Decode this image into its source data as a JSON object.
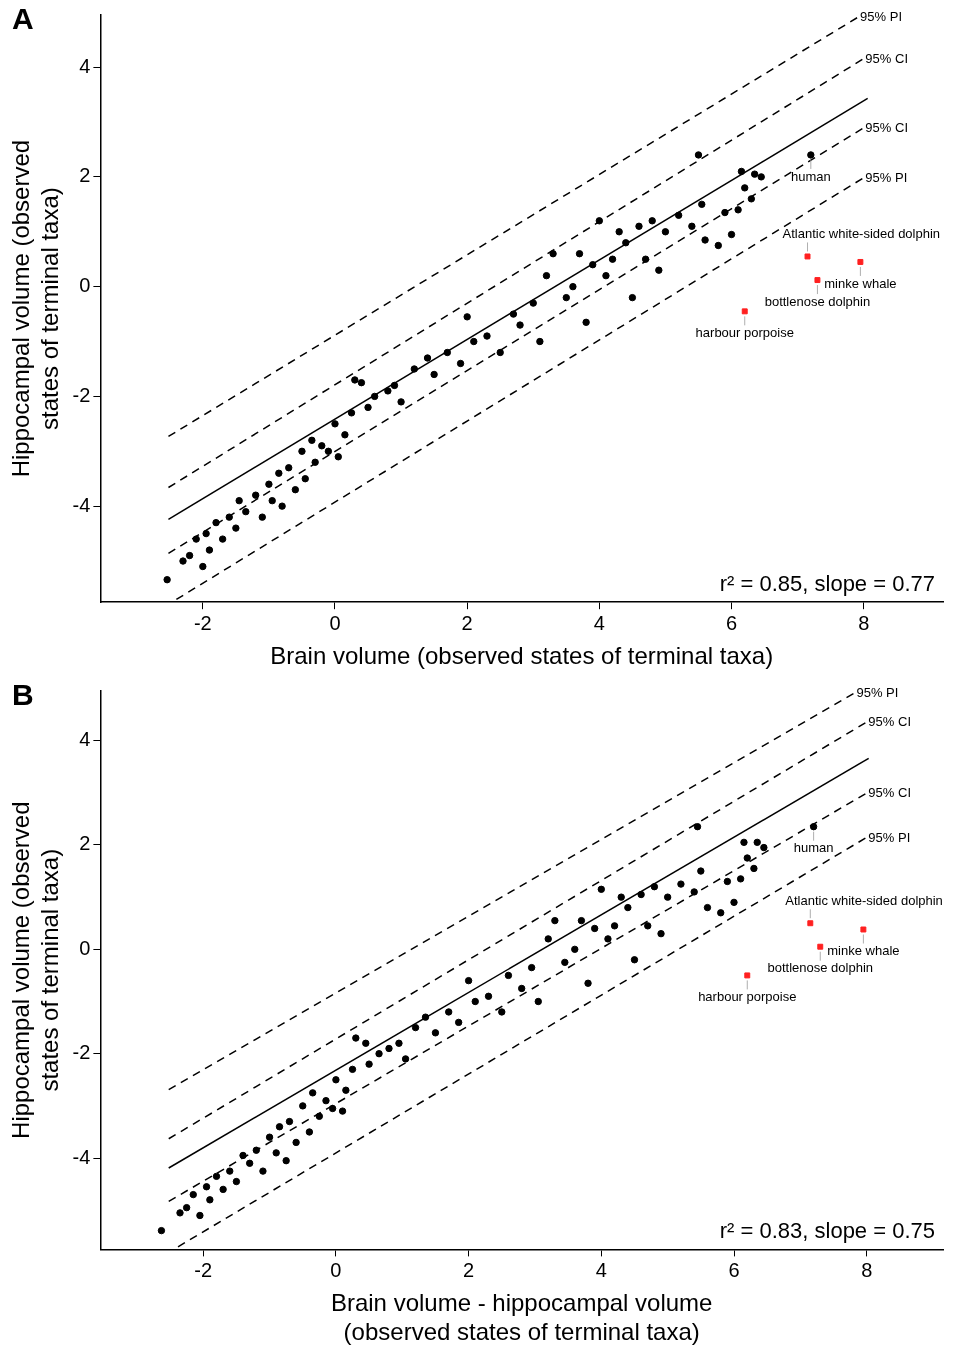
{
  "chart_data": [
    {
      "type": "scatter",
      "title": "A",
      "xlabel": "Brain volume (observed states of terminal taxa)",
      "ylabel": "Hippocampal volume (observed states of terminal taxa)",
      "xlim": [
        -3.55,
        9.2
      ],
      "ylim": [
        -5.75,
        4.95
      ],
      "xticks": [
        -2,
        0,
        2,
        4,
        6,
        8
      ],
      "yticks": [
        -4,
        -2,
        0,
        2,
        4
      ],
      "grid": false,
      "legend": false,
      "series": [
        {
          "type": "scatter",
          "color": "#000000",
          "marker": "circle",
          "x": [
            -2.54,
            -2.3,
            -2.2,
            -2.1,
            -2.0,
            -1.95,
            -1.9,
            -1.8,
            -1.7,
            -1.6,
            -1.5,
            -1.45,
            -1.35,
            -1.2,
            -1.1,
            -1.0,
            -0.95,
            -0.85,
            -0.8,
            -0.7,
            -0.6,
            -0.5,
            -0.45,
            -0.35,
            -0.3,
            -0.2,
            -0.1,
            0.0,
            0.05,
            0.15,
            0.25,
            0.3,
            0.4,
            0.5,
            0.6,
            0.8,
            0.9,
            1.0,
            1.2,
            1.4,
            1.5,
            1.7,
            1.9,
            2.0,
            2.1,
            2.3,
            2.5,
            2.7,
            2.8,
            3.0,
            3.1,
            3.2,
            3.3,
            3.5,
            3.6,
            3.7,
            3.8,
            3.9,
            4.0,
            4.1,
            4.2,
            4.3,
            4.4,
            4.5,
            4.6,
            4.7,
            4.8,
            4.9,
            5.0,
            5.2,
            5.4,
            5.5,
            5.55,
            5.6,
            5.8,
            5.9,
            6.0,
            6.1,
            6.15,
            6.2,
            6.3,
            6.35,
            6.45,
            7.2
          ],
          "values": [
            -5.34,
            -5.0,
            -4.9,
            -4.6,
            -5.1,
            -4.5,
            -4.8,
            -4.3,
            -4.6,
            -4.2,
            -4.4,
            -3.9,
            -4.1,
            -3.8,
            -4.2,
            -3.6,
            -3.9,
            -3.4,
            -4.0,
            -3.3,
            -3.7,
            -3.0,
            -3.5,
            -2.8,
            -3.2,
            -2.9,
            -3.0,
            -2.5,
            -3.1,
            -2.7,
            -2.3,
            -1.7,
            -1.75,
            -2.2,
            -2.0,
            -1.9,
            -1.8,
            -2.1,
            -1.5,
            -1.3,
            -1.6,
            -1.2,
            -1.4,
            -0.55,
            -1.0,
            -0.9,
            -1.2,
            -0.5,
            -0.7,
            -0.3,
            -1.0,
            0.2,
            0.6,
            -0.2,
            0.0,
            0.6,
            -0.65,
            0.4,
            1.2,
            0.2,
            0.5,
            1.0,
            0.8,
            -0.2,
            1.1,
            0.5,
            1.2,
            0.3,
            1.0,
            1.3,
            1.1,
            2.4,
            1.5,
            0.85,
            0.75,
            1.35,
            0.95,
            1.4,
            2.1,
            1.8,
            1.6,
            2.05,
            2.0,
            2.4
          ]
        },
        {
          "type": "scatter",
          "color": "#ff2020",
          "marker": "square",
          "x": [
            7.15,
            7.95,
            7.3,
            6.2
          ],
          "values": [
            0.55,
            0.45,
            0.12,
            -0.45
          ]
        },
        {
          "type": "line",
          "color": "#000000",
          "line_style": "solid",
          "marker": "none",
          "x": [
            -2.52,
            8.06
          ],
          "values": [
            -4.24,
            3.43
          ]
        },
        {
          "type": "line",
          "color": "#000000",
          "line_style": "dashed",
          "marker": "none",
          "x": [
            -2.52,
            7.9
          ],
          "values": [
            -2.73,
            4.9
          ]
        },
        {
          "type": "line",
          "color": "#000000",
          "line_style": "dashed",
          "marker": "none",
          "x": [
            -2.52,
            7.98
          ],
          "values": [
            -3.66,
            4.14
          ]
        },
        {
          "type": "line",
          "color": "#000000",
          "line_style": "dashed",
          "marker": "none",
          "x": [
            -2.52,
            7.98
          ],
          "values": [
            -4.86,
            2.88
          ]
        },
        {
          "type": "line",
          "color": "#000000",
          "line_style": "dashed",
          "marker": "none",
          "x": [
            -2.4,
            7.98
          ],
          "values": [
            -5.7,
            1.97
          ]
        }
      ],
      "annotations": [
        {
          "text": "95% PI",
          "x": 7.9,
          "y": 4.9
        },
        {
          "text": "95% CI",
          "x": 7.98,
          "y": 4.14
        },
        {
          "text": "95% CI",
          "x": 7.98,
          "y": 2.88
        },
        {
          "text": "95% PI",
          "x": 7.98,
          "y": 1.97
        },
        {
          "text": "human",
          "x": 7.2,
          "y": 2.4
        },
        {
          "text": "Atlantic white-sided dolphin",
          "x": 7.15,
          "y": 0.55
        },
        {
          "text": "minke whale",
          "x": 7.95,
          "y": 0.45
        },
        {
          "text": "bottlenose dolphin",
          "x": 7.3,
          "y": 0.12
        },
        {
          "text": "harbour porpoise",
          "x": 6.2,
          "y": -0.45
        },
        "r² = 0.85, slope = 0.77"
      ]
    },
    {
      "type": "scatter",
      "title": "B",
      "xlabel": "Brain volume - hippocampal volume (observed states of terminal taxa)",
      "ylabel": "Hippocampal volume (observed states of terminal taxa)",
      "xlim": [
        -3.55,
        9.15
      ],
      "ylim": [
        -5.75,
        4.95
      ],
      "xticks": [
        -2,
        0,
        2,
        4,
        6,
        8
      ],
      "yticks": [
        -4,
        -2,
        0,
        2,
        4
      ],
      "grid": false,
      "legend": false,
      "series": [
        {
          "type": "scatter",
          "color": "#000000",
          "marker": "circle",
          "x": [
            -2.63,
            -2.35,
            -2.25,
            -2.15,
            -2.05,
            -1.95,
            -1.9,
            -1.8,
            -1.7,
            -1.6,
            -1.5,
            -1.4,
            -1.3,
            -1.2,
            -1.1,
            -1.0,
            -0.9,
            -0.85,
            -0.75,
            -0.7,
            -0.6,
            -0.5,
            -0.4,
            -0.35,
            -0.25,
            -0.15,
            -0.05,
            0.0,
            0.1,
            0.15,
            0.25,
            0.3,
            0.45,
            0.5,
            0.65,
            0.8,
            0.95,
            1.05,
            1.2,
            1.35,
            1.5,
            1.7,
            1.85,
            2.0,
            2.1,
            2.3,
            2.5,
            2.6,
            2.8,
            2.95,
            3.05,
            3.2,
            3.3,
            3.45,
            3.6,
            3.7,
            3.8,
            3.9,
            4.0,
            4.1,
            4.2,
            4.3,
            4.4,
            4.5,
            4.6,
            4.7,
            4.8,
            4.9,
            5.0,
            5.2,
            5.4,
            5.45,
            5.5,
            5.6,
            5.8,
            5.9,
            6.0,
            6.1,
            6.15,
            6.2,
            6.3,
            6.35,
            6.45,
            7.2
          ],
          "values": [
            -5.39,
            -5.05,
            -4.95,
            -4.7,
            -5.1,
            -4.55,
            -4.8,
            -4.35,
            -4.6,
            -4.25,
            -4.45,
            -3.95,
            -4.1,
            -3.85,
            -4.25,
            -3.6,
            -3.9,
            -3.4,
            -4.05,
            -3.3,
            -3.7,
            -3.0,
            -3.5,
            -2.75,
            -3.2,
            -2.9,
            -3.05,
            -2.5,
            -3.1,
            -2.7,
            -2.3,
            -1.7,
            -1.8,
            -2.2,
            -2.0,
            -1.9,
            -1.8,
            -2.1,
            -1.5,
            -1.3,
            -1.6,
            -1.2,
            -1.4,
            -0.6,
            -1.0,
            -0.9,
            -1.2,
            -0.5,
            -0.75,
            -0.35,
            -1.0,
            0.2,
            0.55,
            -0.25,
            0.0,
            0.55,
            -0.65,
            0.4,
            1.15,
            0.2,
            0.45,
            1.0,
            0.8,
            -0.2,
            1.05,
            0.45,
            1.2,
            0.3,
            1.0,
            1.25,
            1.1,
            2.35,
            1.5,
            0.8,
            0.7,
            1.3,
            0.9,
            1.35,
            2.05,
            1.75,
            1.55,
            2.05,
            1.95,
            2.35
          ]
        },
        {
          "type": "scatter",
          "color": "#ff2020",
          "marker": "square",
          "x": [
            7.15,
            7.95,
            7.3,
            6.2
          ],
          "values": [
            0.5,
            0.38,
            0.05,
            -0.5
          ]
        },
        {
          "type": "line",
          "color": "#000000",
          "line_style": "solid",
          "marker": "none",
          "x": [
            -2.52,
            8.03
          ],
          "values": [
            -4.19,
            3.66
          ]
        },
        {
          "type": "line",
          "color": "#000000",
          "line_style": "dashed",
          "marker": "none",
          "x": [
            -2.52,
            7.8
          ],
          "values": [
            -2.69,
            4.9
          ]
        },
        {
          "type": "line",
          "color": "#000000",
          "line_style": "dashed",
          "marker": "none",
          "x": [
            -2.52,
            7.98
          ],
          "values": [
            -3.63,
            4.34
          ]
        },
        {
          "type": "line",
          "color": "#000000",
          "line_style": "dashed",
          "marker": "none",
          "x": [
            -2.52,
            7.98
          ],
          "values": [
            -4.83,
            2.98
          ]
        },
        {
          "type": "line",
          "color": "#000000",
          "line_style": "dashed",
          "marker": "none",
          "x": [
            -2.38,
            7.98
          ],
          "values": [
            -5.7,
            2.13
          ]
        }
      ],
      "annotations": [
        {
          "text": "95% PI",
          "x": 7.8,
          "y": 4.9
        },
        {
          "text": "95% CI",
          "x": 7.98,
          "y": 4.34
        },
        {
          "text": "95% CI",
          "x": 7.98,
          "y": 2.98
        },
        {
          "text": "95% PI",
          "x": 7.98,
          "y": 2.13
        },
        {
          "text": "human",
          "x": 7.2,
          "y": 2.35
        },
        {
          "text": "Atlantic white-sided dolphin",
          "x": 7.15,
          "y": 0.5
        },
        {
          "text": "minke whale",
          "x": 7.95,
          "y": 0.38
        },
        {
          "text": "bottlenose dolphin",
          "x": 7.3,
          "y": 0.05
        },
        {
          "text": "harbour porpoise",
          "x": 6.2,
          "y": -0.5
        },
        "r² = 0.83, slope = 0.75"
      ]
    }
  ]
}
